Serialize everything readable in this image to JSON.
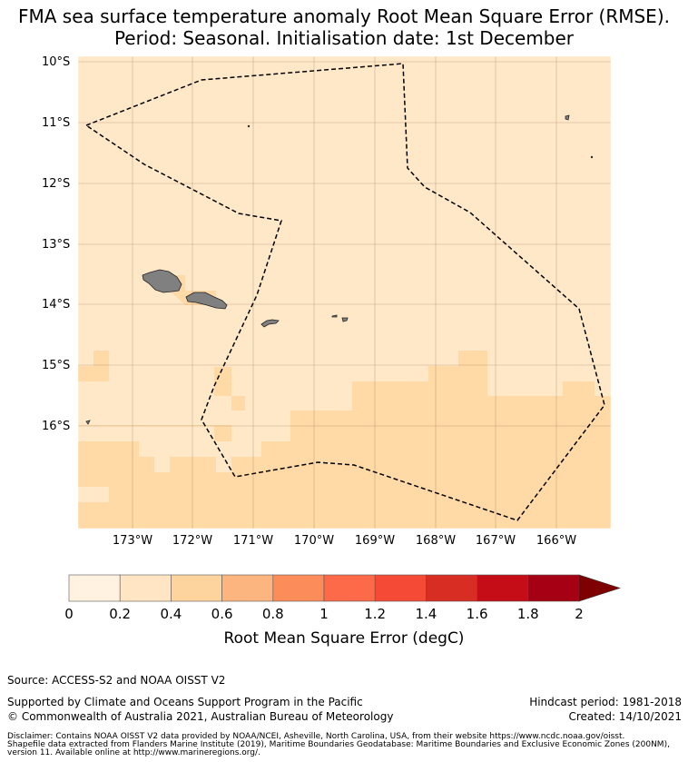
{
  "title": {
    "line1": "FMA sea surface temperature anomaly Root Mean Square Error (RMSE).",
    "line2": "Period: Seasonal. Initialisation date: 1st December"
  },
  "map": {
    "lat_labels": [
      "10°S",
      "11°S",
      "12°S",
      "13°S",
      "14°S",
      "15°S",
      "16°S"
    ],
    "lon_labels": [
      "173°W",
      "172°W",
      "171°W",
      "170°W",
      "169°W",
      "168°W",
      "167°W",
      "166°W"
    ],
    "colors": {
      "background_class": "#ffe8c8",
      "low_class": "#ffd9a6",
      "land": "#808080",
      "eez_boundary": "#000000",
      "grid": "#a08060"
    },
    "eez_style": "dashed"
  },
  "colorbar": {
    "ticks": [
      "0",
      "0.2",
      "0.4",
      "0.6",
      "0.8",
      "1",
      "1.2",
      "1.4",
      "1.6",
      "1.8",
      "2"
    ],
    "colors": [
      "#fff2e0",
      "#ffe5c3",
      "#fed49e",
      "#fdb57f",
      "#fc8d5a",
      "#fc6a49",
      "#f54a36",
      "#d82d23",
      "#c40d17",
      "#a50013",
      "#7f0000"
    ],
    "extend": "max",
    "label": "Root Mean Square Error (degC)"
  },
  "footer": {
    "source": "Source: ACCESS-S2 and NOAA OISST V2",
    "support": "Supported by Climate and Oceans Support Program in the Pacific",
    "copyright": "© Commonwealth of Australia 2021, Australian Bureau of Meteorology",
    "hindcast": "Hindcast period: 1981-2018",
    "created": "Created: 14/10/2021",
    "disclaimer1": "Disclaimer: Contains NOAA OISST V2 data provided by NOAA/NCEI, Asheville, North Carolina, USA, from their website https://www.ncdc.noaa.gov/oisst.",
    "disclaimer2": "Shapefile data extracted from Flanders Marine Institute (2019), Maritime Boundaries Geodatabase: Maritime Boundaries and Exclusive Economic Zones (200NM),",
    "disclaimer3": "version 11. Available online at http://www.marineregions.org/."
  }
}
